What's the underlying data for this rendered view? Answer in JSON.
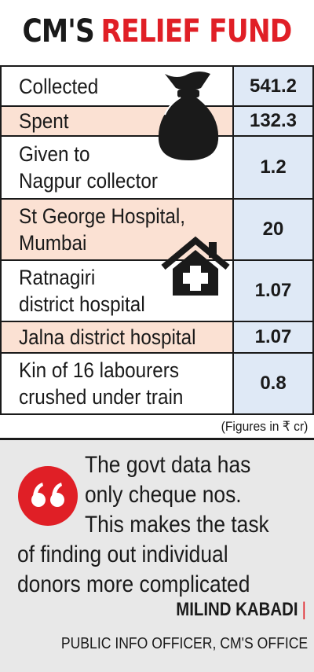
{
  "title": {
    "part1": "CM'S",
    "part2": "RELIEF FUND"
  },
  "colors": {
    "accent_red": "#e01f26",
    "pink_row": "#fbe1d3",
    "value_blue": "#dfe9f6",
    "quote_bg": "#e8e8e8"
  },
  "rows": [
    {
      "label": "Collected",
      "value": "541.2"
    },
    {
      "label": "Spent",
      "value": "132.3"
    },
    {
      "label": "Given to\nNagpur collector",
      "value": "1.2"
    },
    {
      "label": "St George Hospital,\n Mumbai",
      "value": "20"
    },
    {
      "label": "Ratnagiri\ndistrict hospital",
      "value": "1.07"
    },
    {
      "label": "Jalna district hospital",
      "value": "1.07"
    },
    {
      "label": "Kin of 16 labourers\ncrushed under train",
      "value": "0.8"
    }
  ],
  "footnote": "(Figures in ₹ cr)",
  "quote": {
    "lines": [
      "The govt data has",
      "only cheque nos.",
      "This makes the task",
      "of finding out individual",
      "donors more complicated"
    ],
    "name": "MILIND KABADI",
    "role": "PUBLIC INFO OFFICER, CM'S OFFICE"
  },
  "icons": [
    "money-bag-icon",
    "hospital-icon",
    "quote-mark-icon"
  ]
}
